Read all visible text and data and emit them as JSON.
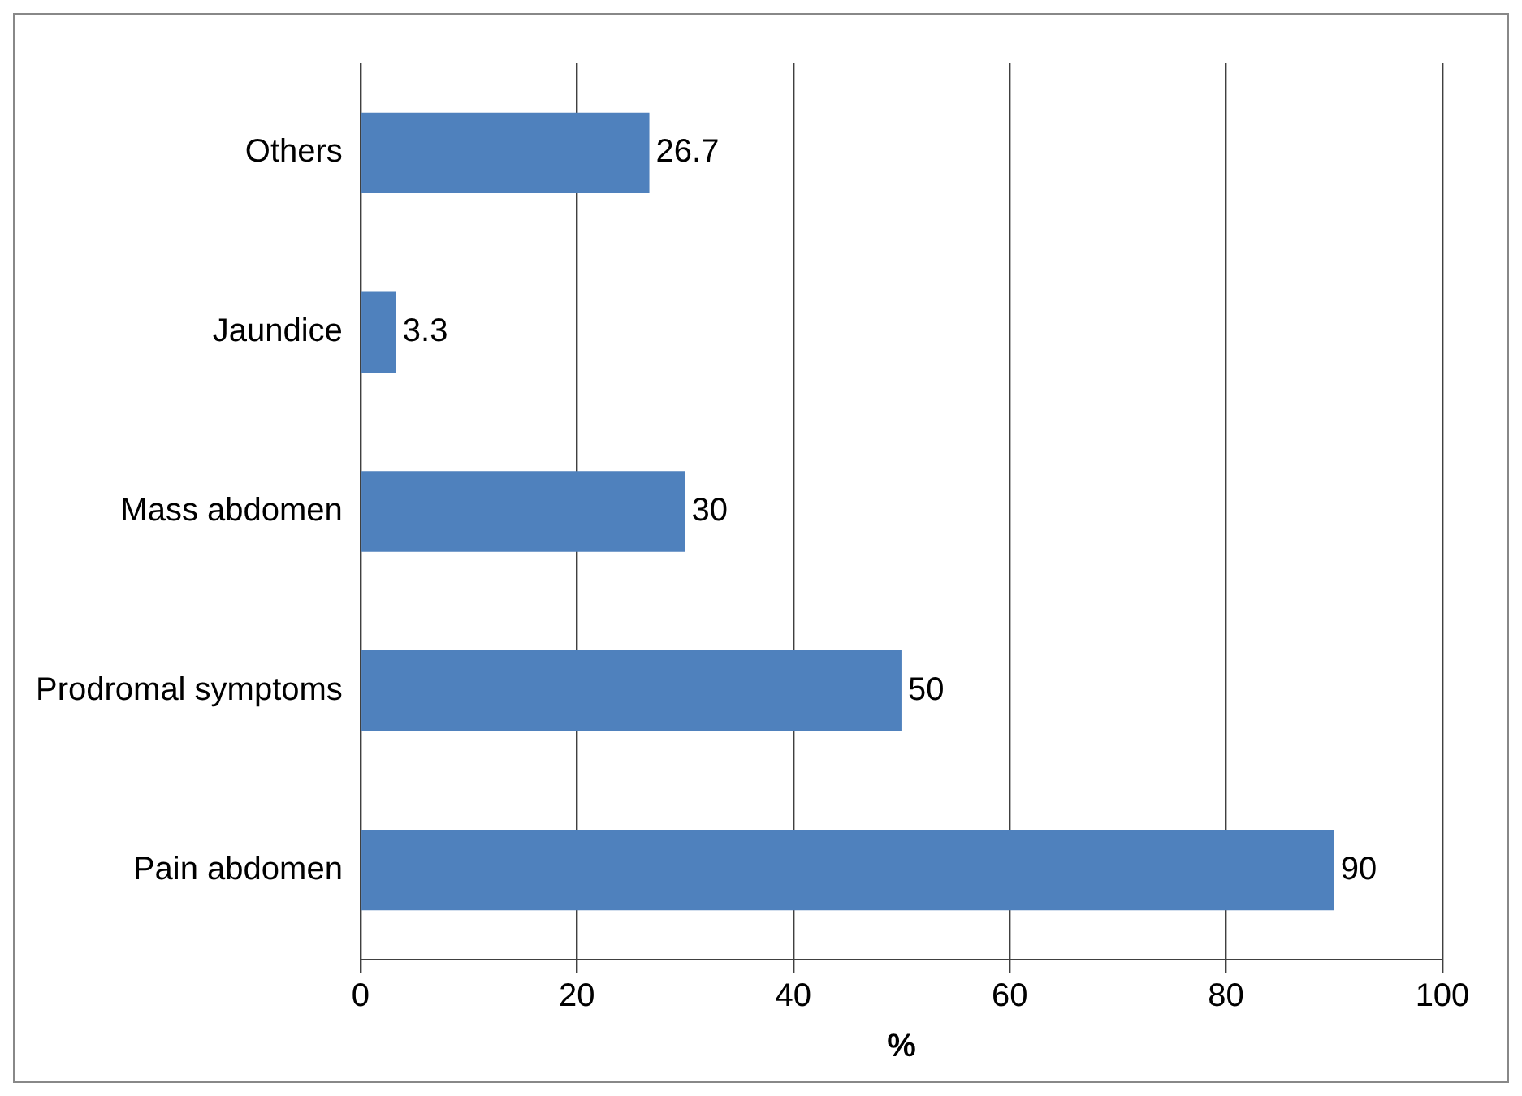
{
  "chart_data": {
    "type": "bar",
    "orientation": "horizontal",
    "xlabel": "%",
    "categories": [
      "Others",
      "Jaundice",
      "Mass abdomen",
      "Prodromal symptoms",
      "Pain abdomen"
    ],
    "values": [
      26.7,
      3.3,
      30,
      50,
      90
    ],
    "color": "#4f81bd",
    "xlim": [
      0,
      100
    ],
    "xticks": [
      0,
      20,
      40,
      60,
      80,
      100
    ],
    "grid": "x",
    "legend": false,
    "data_labels": true
  }
}
